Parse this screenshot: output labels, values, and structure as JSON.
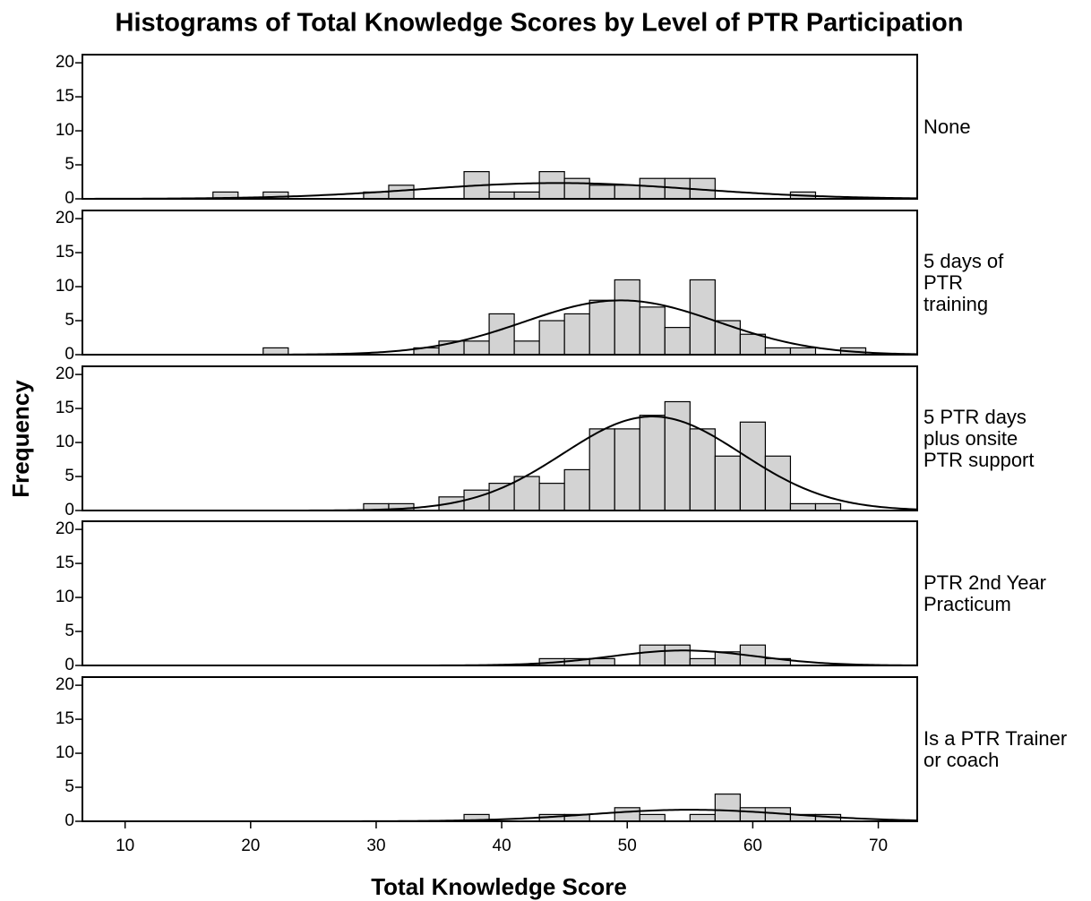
{
  "chart_data": {
    "type": "histogram",
    "title": "Histograms of Total Knowledge Scores by Level of PTR Participation",
    "xlabel": "Total Knowledge Score",
    "ylabel": "Frequency",
    "bins": [
      17,
      19,
      21,
      23,
      25,
      27,
      29,
      31,
      33,
      35,
      37,
      39,
      41,
      43,
      45,
      47,
      49,
      51,
      53,
      55,
      57,
      59,
      61,
      63,
      65,
      67,
      69
    ],
    "xlim": [
      6.6,
      73.1
    ],
    "xticks": [
      10,
      20,
      30,
      40,
      50,
      60,
      70
    ],
    "ylim": [
      0,
      21.2
    ],
    "yticks": [
      0,
      5,
      10,
      15,
      20
    ],
    "color": "#d3d3d3",
    "series": [
      {
        "name": "None",
        "values": [
          1,
          0,
          1,
          0,
          0,
          0,
          1,
          2,
          0,
          0,
          4,
          1,
          1,
          4,
          3,
          2,
          2,
          3,
          3,
          3,
          0,
          0,
          0,
          1,
          0,
          0
        ],
        "mean": 44.5,
        "sd": 11
      },
      {
        "name": "5 days of\nPTR\ntraining",
        "values": [
          0,
          0,
          1,
          0,
          0,
          0,
          0,
          0,
          1,
          2,
          2,
          6,
          2,
          5,
          6,
          8,
          11,
          7,
          4,
          11,
          5,
          3,
          1,
          1,
          0,
          1
        ],
        "mean": 49.5,
        "sd": 7.7
      },
      {
        "name": "5 PTR days\nplus onsite\nPTR support",
        "values": [
          0,
          0,
          0,
          0,
          0,
          0,
          1,
          1,
          0,
          2,
          3,
          4,
          5,
          4,
          6,
          12,
          12,
          14,
          16,
          12,
          8,
          13,
          8,
          1,
          1,
          0
        ],
        "mean": 52,
        "sd": 7.1
      },
      {
        "name": "PTR 2nd Year\nPracticum",
        "values": [
          0,
          0,
          0,
          0,
          0,
          0,
          0,
          0,
          0,
          0,
          0,
          0,
          0,
          1,
          1,
          1,
          0,
          3,
          3,
          1,
          2,
          3,
          1,
          0,
          0,
          0
        ],
        "mean": 54.5,
        "sd": 5.8
      },
      {
        "name": "Is a PTR Trainer\nor coach",
        "values": [
          0,
          0,
          0,
          0,
          0,
          0,
          0,
          0,
          0,
          0,
          1,
          0,
          0,
          1,
          1,
          0,
          2,
          1,
          0,
          1,
          4,
          2,
          2,
          1,
          1,
          0
        ],
        "mean": 55,
        "sd": 8
      }
    ]
  }
}
